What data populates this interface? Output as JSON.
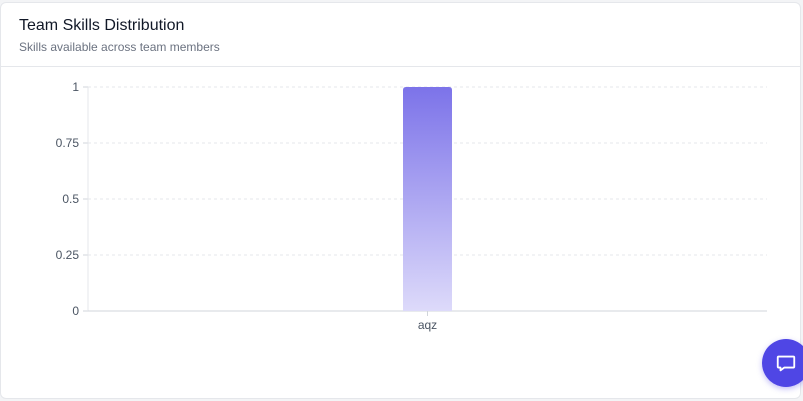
{
  "card": {
    "title": "Team Skills Distribution",
    "subtitle": "Skills available across team members"
  },
  "chart_data": {
    "type": "bar",
    "categories": [
      "aqz"
    ],
    "values": [
      1
    ],
    "ylim": [
      0,
      1
    ],
    "yticks": [
      "0",
      "0.25",
      "0.5",
      "0.75",
      "1"
    ],
    "grid": true,
    "bar_color_top": "#7c73e9",
    "bar_color_bottom": "#dddafa"
  },
  "chat_widget": {
    "icon": "chat-bubble-icon",
    "color": "#4f46e5"
  }
}
